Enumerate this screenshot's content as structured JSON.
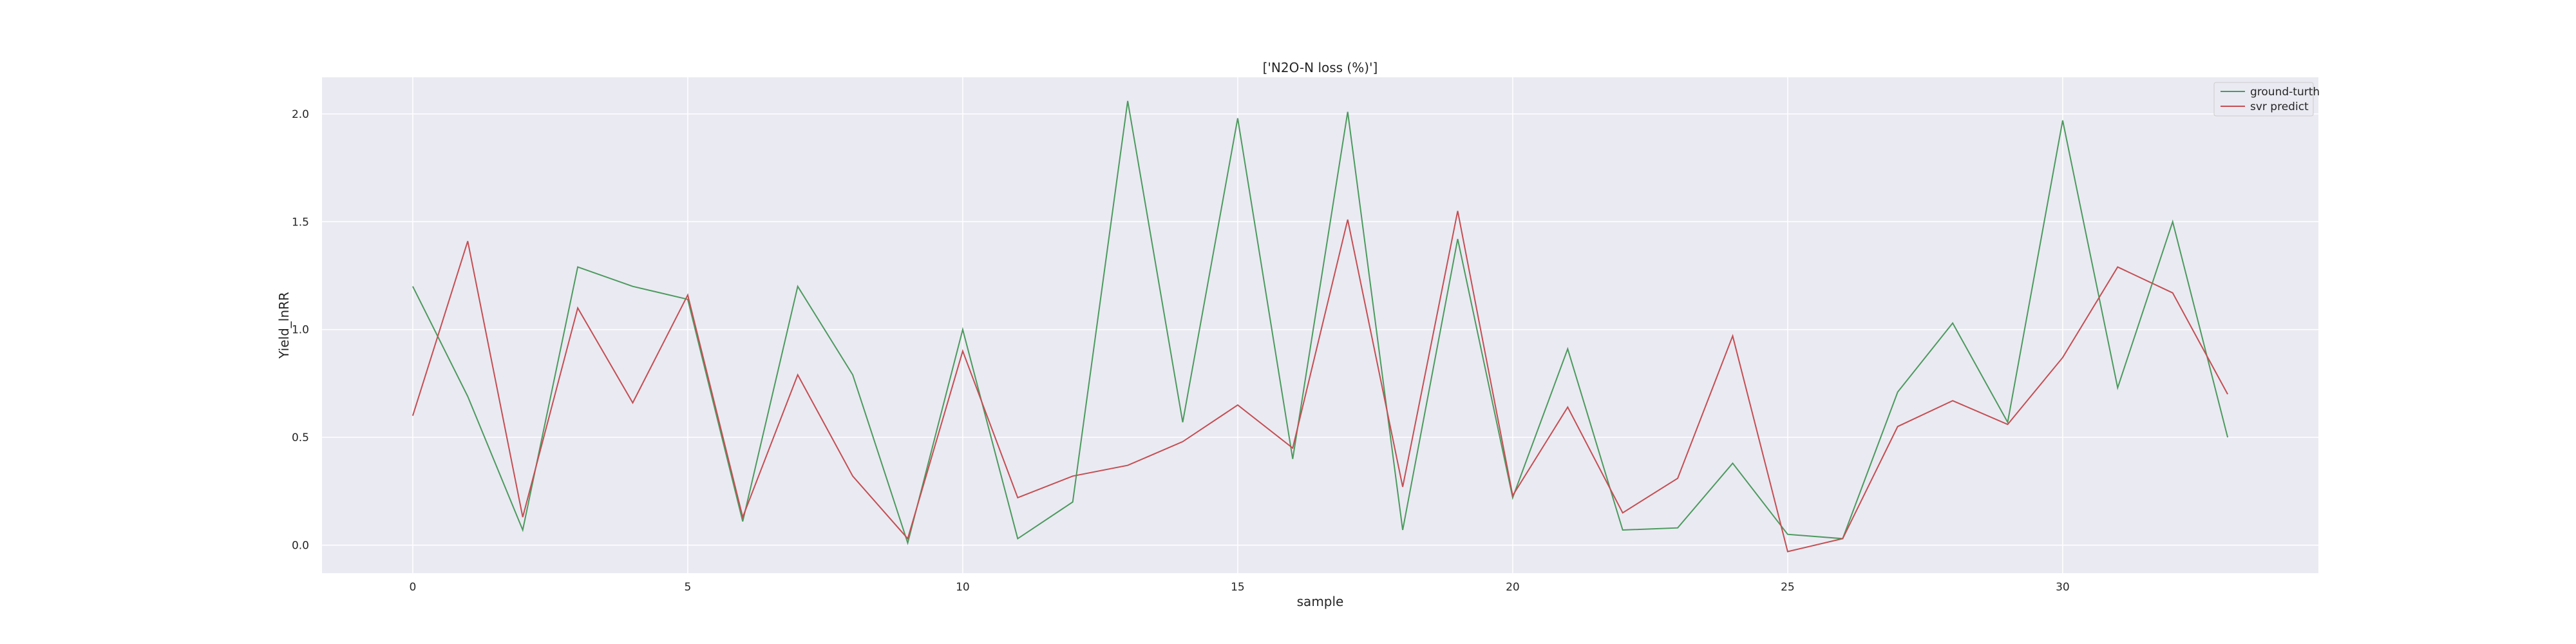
{
  "chart_data": {
    "type": "line",
    "title": "['N2O-N loss (%)']",
    "xlabel": "sample",
    "ylabel": "Yield_lnRR",
    "x": [
      0,
      1,
      2,
      3,
      4,
      5,
      6,
      7,
      8,
      9,
      10,
      11,
      12,
      13,
      14,
      15,
      16,
      17,
      18,
      19,
      20,
      21,
      22,
      23,
      24,
      25,
      26,
      27,
      28,
      29,
      30,
      31,
      32,
      33
    ],
    "xlim": [
      -1.65,
      34.65
    ],
    "ylim": [
      -0.13,
      2.17
    ],
    "xticks": [
      0,
      5,
      10,
      15,
      20,
      25,
      30
    ],
    "yticks": [
      0.0,
      0.5,
      1.0,
      1.5,
      2.0
    ],
    "xtick_labels": [
      "0",
      "5",
      "10",
      "15",
      "20",
      "25",
      "30"
    ],
    "ytick_labels": [
      "0.0",
      "0.5",
      "1.0",
      "1.5",
      "2.0"
    ],
    "grid": true,
    "legend_position": "top-right",
    "series": [
      {
        "name": "ground-turth",
        "color": "#4c9a5e",
        "values": [
          1.2,
          0.69,
          0.07,
          1.29,
          1.2,
          1.14,
          0.11,
          1.2,
          0.79,
          0.01,
          1.0,
          0.03,
          0.2,
          2.06,
          0.57,
          1.98,
          0.4,
          2.01,
          0.07,
          1.42,
          0.22,
          0.91,
          0.07,
          0.08,
          0.38,
          0.05,
          0.03,
          0.71,
          1.03,
          0.57,
          1.97,
          0.73,
          1.5,
          0.5
        ]
      },
      {
        "name": "svr predict",
        "color": "#c44e52",
        "values": [
          0.6,
          1.41,
          0.13,
          1.1,
          0.66,
          1.16,
          0.13,
          0.79,
          0.32,
          0.03,
          0.9,
          0.22,
          0.32,
          0.37,
          0.48,
          0.65,
          0.45,
          1.51,
          0.27,
          1.55,
          0.23,
          0.64,
          0.15,
          0.31,
          0.97,
          -0.03,
          0.03,
          0.55,
          0.67,
          0.56,
          0.87,
          1.29,
          1.17,
          0.7
        ]
      }
    ]
  }
}
